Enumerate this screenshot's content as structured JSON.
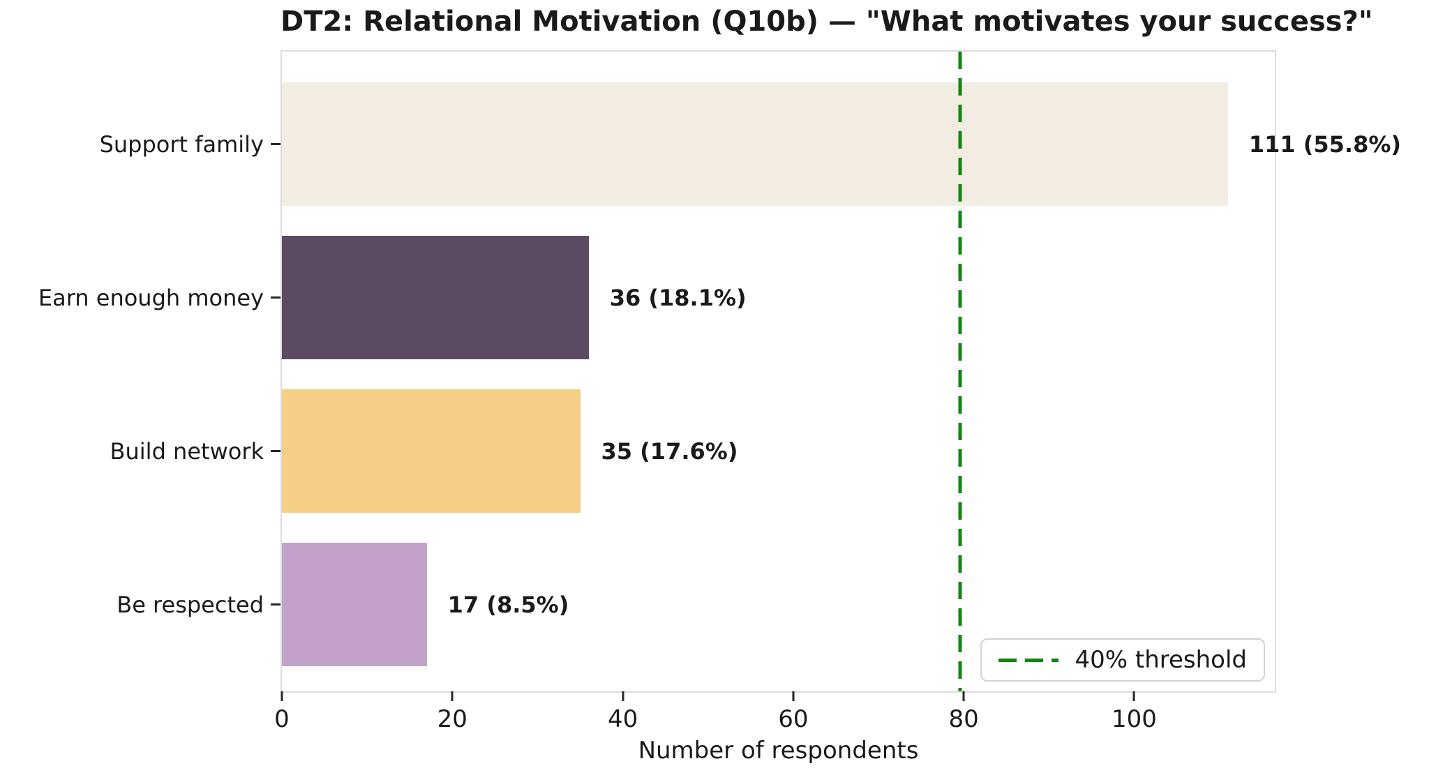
{
  "chart_data": {
    "type": "bar",
    "orientation": "horizontal",
    "title": "DT2: Relational Motivation (Q10b) — \"What motivates your success?\"",
    "categories": [
      "Support family",
      "Earn enough money",
      "Build network",
      "Be respected"
    ],
    "values": [
      111,
      36,
      35,
      17
    ],
    "value_labels": [
      "111 (55.8%)",
      "36 (18.1%)",
      "35 (17.6%)",
      "17 (8.5%)"
    ],
    "percentages": [
      55.8,
      18.1,
      17.6,
      8.5
    ],
    "bar_colors": [
      "#f2ece3",
      "#5d4a63",
      "#f5cf85",
      "#c2a2c8"
    ],
    "xlabel": "Number of respondents",
    "x_ticks": [
      0,
      20,
      40,
      60,
      80,
      100
    ],
    "xlim": [
      0,
      116.5
    ],
    "grid": false,
    "threshold": {
      "value": 79.6,
      "label": "40% threshold",
      "color": "#118611",
      "style": "dashed"
    },
    "legend_position": "lower right",
    "spine_color": "#dcdcdc",
    "text_color": "#1a1a1a"
  }
}
